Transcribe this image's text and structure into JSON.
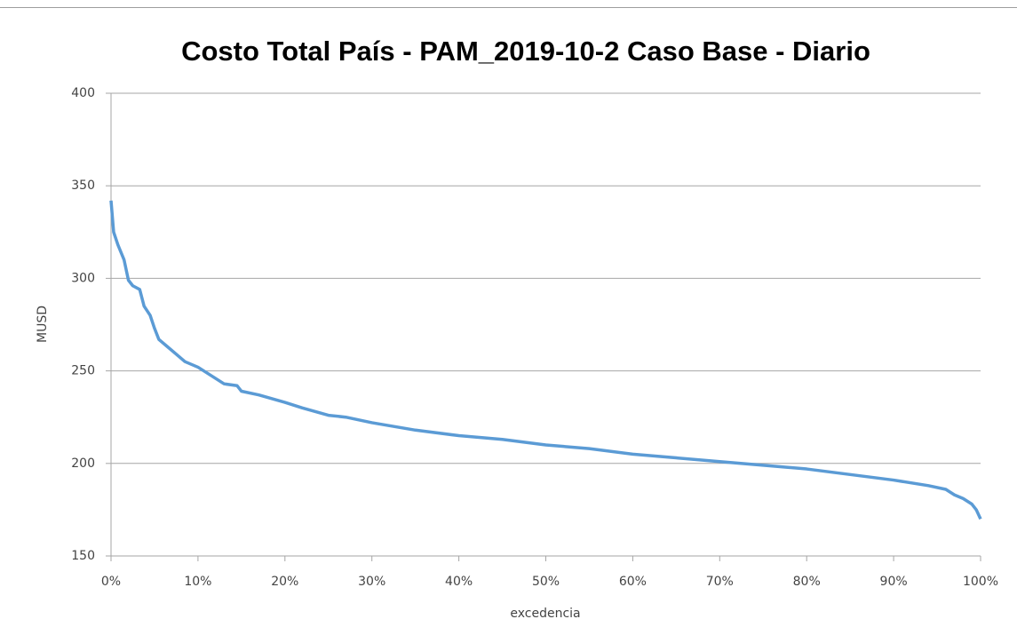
{
  "chart_data": {
    "type": "line",
    "title": "Costo Total País - PAM_2019-10-2 Caso Base - Diario",
    "xlabel": "excedencia",
    "ylabel": "MUSD",
    "x": [
      0,
      0.3,
      0.8,
      1.5,
      2,
      2.5,
      3.3,
      3.8,
      4.5,
      5,
      5.5,
      6.5,
      7.5,
      8.5,
      10,
      12,
      13,
      14.5,
      15,
      17,
      20,
      22,
      25,
      27,
      30,
      35,
      40,
      45,
      50,
      55,
      60,
      65,
      70,
      75,
      80,
      85,
      90,
      94,
      96,
      97,
      98,
      99,
      99.5,
      100
    ],
    "values": [
      342,
      325,
      318,
      310,
      299,
      296,
      294,
      285,
      280,
      273,
      267,
      263,
      259,
      255,
      252,
      246,
      243,
      242,
      239,
      237,
      233,
      230,
      226,
      225,
      222,
      218,
      215,
      213,
      210,
      208,
      205,
      203,
      201,
      199,
      197,
      194,
      191,
      188,
      186,
      183,
      181,
      178,
      175,
      170
    ],
    "color": "#5b9bd5",
    "xlim": [
      0,
      100
    ],
    "xticks": [
      {
        "value": 0,
        "label": "0%"
      },
      {
        "value": 10,
        "label": "10%"
      },
      {
        "value": 20,
        "label": "20%"
      },
      {
        "value": 30,
        "label": "30%"
      },
      {
        "value": 40,
        "label": "40%"
      },
      {
        "value": 50,
        "label": "50%"
      },
      {
        "value": 60,
        "label": "60%"
      },
      {
        "value": 70,
        "label": "70%"
      },
      {
        "value": 80,
        "label": "80%"
      },
      {
        "value": 90,
        "label": "90%"
      },
      {
        "value": 100,
        "label": "100%"
      }
    ],
    "ylim": [
      150,
      400
    ],
    "yticks": [
      150,
      200,
      250,
      300,
      350,
      400
    ],
    "grid": true
  }
}
